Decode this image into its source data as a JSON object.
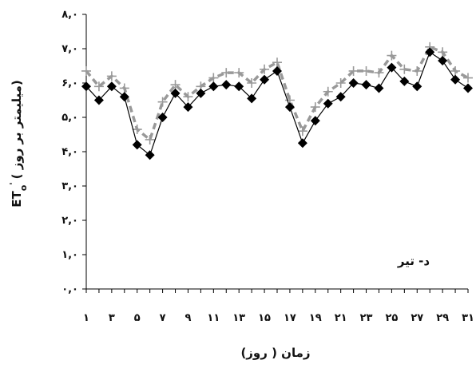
{
  "chart_data": {
    "type": "line",
    "xlabel": "زمان ( روز)",
    "ylabel_main": "ET",
    "ylabel_sub": "o",
    "ylabel_prime": "'",
    "ylabel_unit": "( میلیمتر بر روز)",
    "annotation": "د- تیر",
    "x": [
      1,
      2,
      3,
      4,
      5,
      6,
      7,
      8,
      9,
      10,
      11,
      12,
      13,
      14,
      15,
      16,
      17,
      18,
      19,
      20,
      21,
      22,
      23,
      24,
      25,
      26,
      27,
      28,
      29,
      30,
      31
    ],
    "xticks": [
      1,
      3,
      5,
      7,
      9,
      11,
      13,
      15,
      17,
      19,
      21,
      23,
      25,
      27,
      29,
      31
    ],
    "xtick_labels": [
      "۱",
      "۳",
      "۵",
      "۷",
      "۹",
      "۱۱",
      "۱۳",
      "۱۵",
      "۱۷",
      "۱۹",
      "۲۱",
      "۲۳",
      "۲۵",
      "۲۷",
      "۲۹",
      "۳۱"
    ],
    "yticks": [
      0,
      1,
      2,
      3,
      4,
      5,
      6,
      7,
      8
    ],
    "ytick_labels": [
      "۰,۰",
      "۱,۰",
      "۲,۰",
      "۳,۰",
      "۴,۰",
      "۵,۰",
      "۶,۰",
      "۷,۰",
      "۸,۰"
    ],
    "ylim": [
      0,
      8
    ],
    "xlim": [
      1,
      31
    ],
    "grid": false,
    "series": [
      {
        "marker": "diamond",
        "line": "solid",
        "color": "#000000",
        "values": [
          5.9,
          5.5,
          5.9,
          5.6,
          4.2,
          3.9,
          5.0,
          5.7,
          5.3,
          5.7,
          5.9,
          5.95,
          5.9,
          5.55,
          6.1,
          6.35,
          5.3,
          4.25,
          4.9,
          5.4,
          5.6,
          6.0,
          5.95,
          5.85,
          6.45,
          6.05,
          5.9,
          6.9,
          6.65,
          6.1,
          5.85
        ]
      },
      {
        "marker": "plus",
        "line": "dashed",
        "color": "#999999",
        "values": [
          6.35,
          5.9,
          6.2,
          5.85,
          4.65,
          4.35,
          5.45,
          5.95,
          5.6,
          5.9,
          6.15,
          6.3,
          6.3,
          6.0,
          6.4,
          6.6,
          5.5,
          4.6,
          5.3,
          5.75,
          6.0,
          6.35,
          6.35,
          6.3,
          6.8,
          6.4,
          6.35,
          7.05,
          6.9,
          6.35,
          6.15
        ]
      }
    ]
  }
}
